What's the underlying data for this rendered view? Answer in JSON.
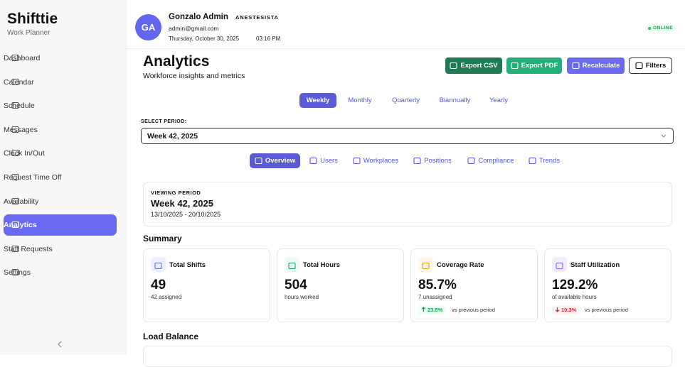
{
  "sidebar": {
    "brand": "Shifttie",
    "subtitle": "Work Planner",
    "nav": [
      "Dashboard",
      "Calendar",
      "Schedule",
      "Messages",
      "Clock In/Out",
      "Request Time Off",
      "Availability",
      "Analytics",
      "Staff Requests",
      "Settings"
    ]
  },
  "header": {
    "initials": "GA",
    "name": "Gonzalo Admin",
    "role": "ANESTESISTA",
    "email": "admin@gmail.com",
    "date": "Thursday, October 30, 2025",
    "time": "03:16 PM",
    "status": "ONLINE"
  },
  "page": {
    "title": "Analytics",
    "subtitle": "Workforce insights and metrics",
    "actions": [
      "Export CSV",
      "Export PDF",
      "Recalculate",
      "Filters"
    ],
    "period_tabs": [
      "Weekly",
      "Monthly",
      "Quarterly",
      "Biannually",
      "Yearly"
    ],
    "select_label": "SELECT PERIOD:",
    "select_value": "Week 42, 2025",
    "view_tabs": [
      "Overview",
      "Users",
      "Workplaces",
      "Positions",
      "Compliance",
      "Trends"
    ],
    "viewing": {
      "label": "VIEWING PERIOD",
      "name": "Week 42, 2025",
      "range": "13/10/2025 - 20/10/2025"
    },
    "summary_title": "Summary",
    "cards": [
      {
        "title": "Total Shifts",
        "value": "49",
        "note": "42 assigned"
      },
      {
        "title": "Total Hours",
        "value": "504",
        "note": "hours worked"
      },
      {
        "title": "Coverage Rate",
        "value": "85.7%",
        "note": "7 unassigned",
        "change": "23.5%",
        "change_note": "vs previous period"
      },
      {
        "title": "Staff Utilization",
        "value": "129.2%",
        "note": "of available hours",
        "change": "10.3%",
        "change_note": "vs previous period"
      }
    ],
    "load_title": "Load Balance"
  }
}
